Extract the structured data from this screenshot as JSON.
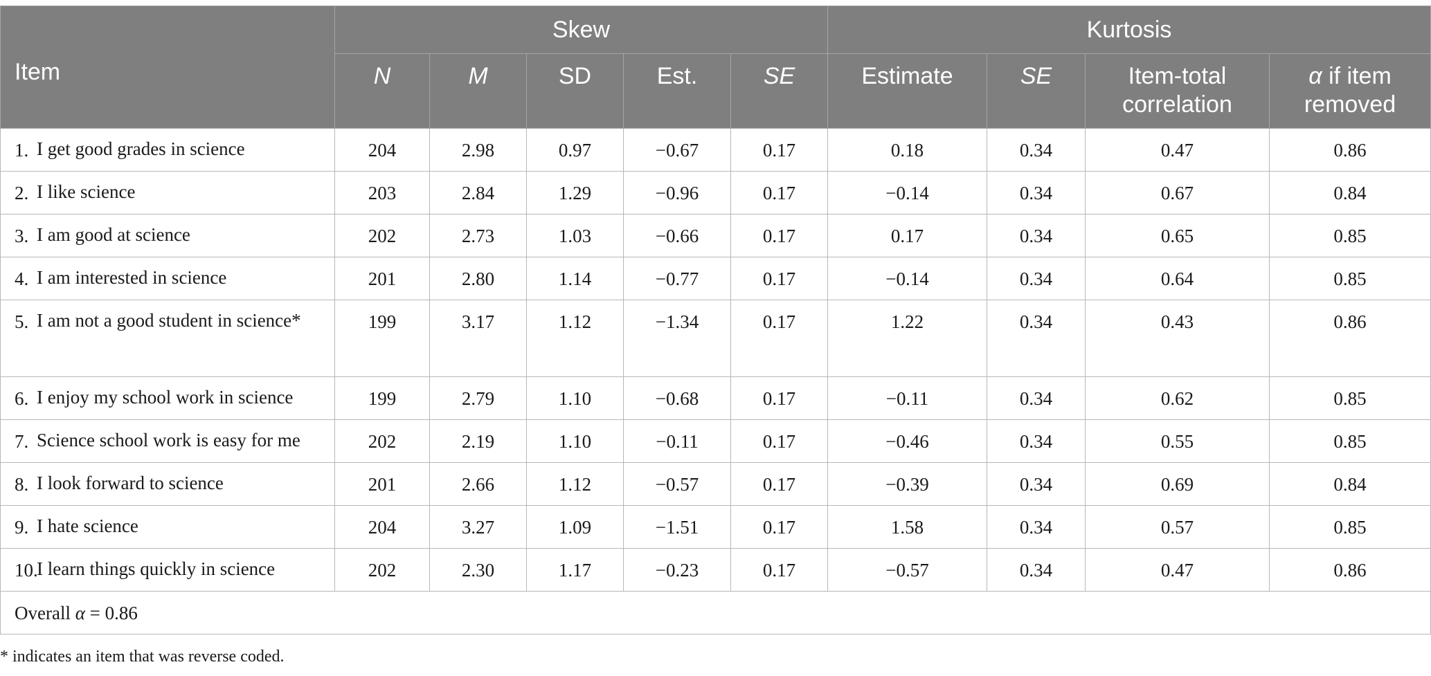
{
  "header": {
    "item": "Item",
    "skew": "Skew",
    "kurtosis": "Kurtosis",
    "cols": {
      "n": "N",
      "m": "M",
      "sd": "SD",
      "est": "Est.",
      "se1": "SE",
      "estimate": "Estimate",
      "se2": "SE",
      "itc_line1": "Item-total",
      "itc_line2": "correlation",
      "alpha_symbol": "α",
      "alpha_rest": " if item",
      "alpha_line2": "removed"
    }
  },
  "rows": [
    {
      "num": "1.",
      "text": "I get good grades in science",
      "n": "204",
      "m": "2.98",
      "sd": "0.97",
      "est": "−0.67",
      "se1": "0.17",
      "estimate": "0.18",
      "se2": "0.34",
      "itc": "0.47",
      "alpha": "0.86"
    },
    {
      "num": "2.",
      "text": "I like science",
      "n": "203",
      "m": "2.84",
      "sd": "1.29",
      "est": "−0.96",
      "se1": "0.17",
      "estimate": "−0.14",
      "se2": "0.34",
      "itc": "0.67",
      "alpha": "0.84"
    },
    {
      "num": "3.",
      "text": "I am good at science",
      "n": "202",
      "m": "2.73",
      "sd": "1.03",
      "est": "−0.66",
      "se1": "0.17",
      "estimate": "0.17",
      "se2": "0.34",
      "itc": "0.65",
      "alpha": "0.85"
    },
    {
      "num": "4.",
      "text": "I am interested in science",
      "n": "201",
      "m": "2.80",
      "sd": "1.14",
      "est": "−0.77",
      "se1": "0.17",
      "estimate": "−0.14",
      "se2": "0.34",
      "itc": "0.64",
      "alpha": "0.85"
    },
    {
      "num": "5.",
      "text": "I am not a good student in science*",
      "n": "199",
      "m": "3.17",
      "sd": "1.12",
      "est": "−1.34",
      "se1": "0.17",
      "estimate": "1.22",
      "se2": "0.34",
      "itc": "0.43",
      "alpha": "0.86"
    },
    {
      "num": "6.",
      "text": "I enjoy my school work in science",
      "n": "199",
      "m": "2.79",
      "sd": "1.10",
      "est": "−0.68",
      "se1": "0.17",
      "estimate": "−0.11",
      "se2": "0.34",
      "itc": "0.62",
      "alpha": "0.85"
    },
    {
      "num": "7.",
      "text": "Science school work is easy for me",
      "n": "202",
      "m": "2.19",
      "sd": "1.10",
      "est": "−0.11",
      "se1": "0.17",
      "estimate": "−0.46",
      "se2": "0.34",
      "itc": "0.55",
      "alpha": "0.85"
    },
    {
      "num": "8.",
      "text": "I look forward to science",
      "n": "201",
      "m": "2.66",
      "sd": "1.12",
      "est": "−0.57",
      "se1": "0.17",
      "estimate": "−0.39",
      "se2": "0.34",
      "itc": "0.69",
      "alpha": "0.84"
    },
    {
      "num": "9.",
      "text": "I hate science",
      "n": "204",
      "m": "3.27",
      "sd": "1.09",
      "est": "−1.51",
      "se1": "0.17",
      "estimate": "1.58",
      "se2": "0.34",
      "itc": "0.57",
      "alpha": "0.85"
    },
    {
      "num": "10.",
      "text": "I learn things quickly in science",
      "n": "202",
      "m": "2.30",
      "sd": "1.17",
      "est": "−0.23",
      "se1": "0.17",
      "estimate": "−0.57",
      "se2": "0.34",
      "itc": "0.47",
      "alpha": "0.86"
    }
  ],
  "overall": {
    "prefix": "Overall ",
    "symbol": "α",
    "value": " = 0.86"
  },
  "footnote": "* indicates an item that was reverse coded."
}
